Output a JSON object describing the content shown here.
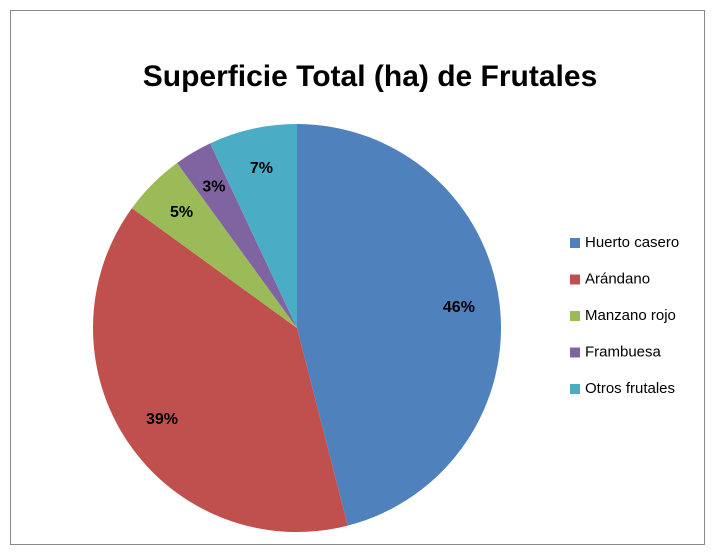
{
  "chart_data": {
    "type": "pie",
    "title": "Superficie Total (ha) de Frutales",
    "categories": [
      "Huerto casero",
      "Arándano",
      "Manzano rojo",
      "Frambuesa",
      "Otros frutales"
    ],
    "values": [
      46,
      39,
      5,
      3,
      7
    ],
    "value_labels": [
      "46%",
      "39%",
      "5%",
      "3%",
      "7%"
    ],
    "colors": [
      "#4f81bd",
      "#c0504d",
      "#9bbb59",
      "#8064a2",
      "#4bacc6"
    ],
    "legend": "right"
  }
}
